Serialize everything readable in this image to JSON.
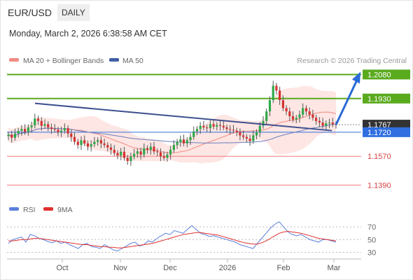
{
  "header": {
    "pair": "EUR/USD",
    "timeframe": "DAILY",
    "timestamp": "Monday, March 2, 2026 6:38:58 AM CET"
  },
  "legend": {
    "ma20_label": "MA 20 + Bollinger Bands",
    "ma20_color": "#f28b82",
    "ma50_label": "MA 50",
    "ma50_color": "#3f5fa6",
    "credit": "Research © 2026 Trading Central"
  },
  "rsi_legend": {
    "rsi_label": "RSI",
    "rsi_color": "#5b7fdb",
    "ma_label": "9MA",
    "ma_color": "#e03030"
  },
  "chart_data": [
    {
      "type": "candlestick",
      "title": "",
      "x_ticks": [
        "Oct",
        "Nov",
        "Dec",
        "2026",
        "Feb",
        "Mar"
      ],
      "ylim": [
        1.13,
        1.213
      ],
      "current_price": 1.1767,
      "levels": [
        {
          "label": "1.2080",
          "value": 1.208,
          "kind": "resistance",
          "color": "#5aaa1e"
        },
        {
          "label": "1.1930",
          "value": 1.193,
          "kind": "resistance",
          "color": "#5aaa1e"
        },
        {
          "label": "1.1767",
          "value": 1.1767,
          "kind": "current",
          "color": "#333333"
        },
        {
          "label": "1.1720",
          "value": 1.172,
          "kind": "pivot",
          "color": "#2f6fe0"
        },
        {
          "label": "1.1570",
          "value": 1.157,
          "kind": "support",
          "color": "#f07c7c"
        },
        {
          "label": "1.1390",
          "value": 1.139,
          "kind": "support",
          "color": "#f07c7c"
        }
      ],
      "trendline": {
        "from": 1.19,
        "to": 1.173
      },
      "arrow": {
        "from": 1.1767,
        "to": 1.208
      },
      "closes": [
        1.1705,
        1.1685,
        1.1712,
        1.1728,
        1.174,
        1.1722,
        1.175,
        1.1762,
        1.1805,
        1.179,
        1.176,
        1.177,
        1.175,
        1.174,
        1.1735,
        1.172,
        1.173,
        1.1745,
        1.1712,
        1.169,
        1.166,
        1.164,
        1.167,
        1.165,
        1.163,
        1.1645,
        1.166,
        1.167,
        1.165,
        1.164,
        1.1625,
        1.161,
        1.159,
        1.1575,
        1.1598,
        1.156,
        1.154,
        1.1568,
        1.1585,
        1.16,
        1.158,
        1.162,
        1.161,
        1.163,
        1.16,
        1.1595,
        1.157,
        1.156,
        1.158,
        1.161,
        1.164,
        1.166,
        1.1675,
        1.165,
        1.167,
        1.169,
        1.1725,
        1.174,
        1.176,
        1.175,
        1.1745,
        1.177,
        1.1755,
        1.1765,
        1.176,
        1.175,
        1.174,
        1.1735,
        1.173,
        1.172,
        1.17,
        1.169,
        1.168,
        1.1665,
        1.17,
        1.172,
        1.176,
        1.179,
        1.185,
        1.192,
        1.201,
        1.198,
        1.192,
        1.187,
        1.185,
        1.182,
        1.18,
        1.181,
        1.183,
        1.187,
        1.185,
        1.183,
        1.181,
        1.179,
        1.178,
        1.176,
        1.1775,
        1.178,
        1.177,
        1.1767
      ]
    },
    {
      "type": "line",
      "title": "",
      "ylim": [
        25,
        80
      ],
      "y_ticks": [
        "70",
        "50",
        "30"
      ],
      "series": [
        {
          "name": "RSI",
          "values": [
            44,
            50,
            52,
            54,
            46,
            58,
            56,
            52,
            50,
            47,
            45,
            48,
            44,
            46,
            42,
            39,
            36,
            42,
            44,
            39,
            38,
            36,
            42,
            38,
            34,
            32,
            36,
            40,
            44,
            46,
            40,
            42,
            48,
            46,
            52,
            56,
            60,
            58,
            64,
            62,
            60,
            66,
            72,
            66,
            60,
            58,
            55,
            56,
            54,
            52,
            50,
            48,
            46,
            42,
            40,
            38,
            36,
            44,
            52,
            60,
            68,
            74,
            78,
            70,
            62,
            58,
            56,
            58,
            54,
            50,
            48,
            46,
            50,
            50,
            48,
            46
          ]
        },
        {
          "name": "9MA",
          "values": [
            48,
            48,
            49,
            50,
            50,
            51,
            52,
            52,
            51,
            50,
            49,
            48,
            47,
            46,
            45,
            44,
            43,
            42,
            42,
            41,
            40,
            39,
            39,
            38,
            38,
            37,
            37,
            38,
            39,
            40,
            41,
            42,
            43,
            44,
            46,
            48,
            50,
            52,
            54,
            56,
            58,
            59,
            60,
            61,
            61,
            60,
            59,
            58,
            57,
            55,
            53,
            51,
            49,
            47,
            45,
            44,
            43,
            43,
            45,
            48,
            52,
            56,
            60,
            62,
            63,
            62,
            61,
            60,
            58,
            56,
            54,
            52,
            51,
            50,
            49,
            48
          ]
        }
      ]
    }
  ]
}
